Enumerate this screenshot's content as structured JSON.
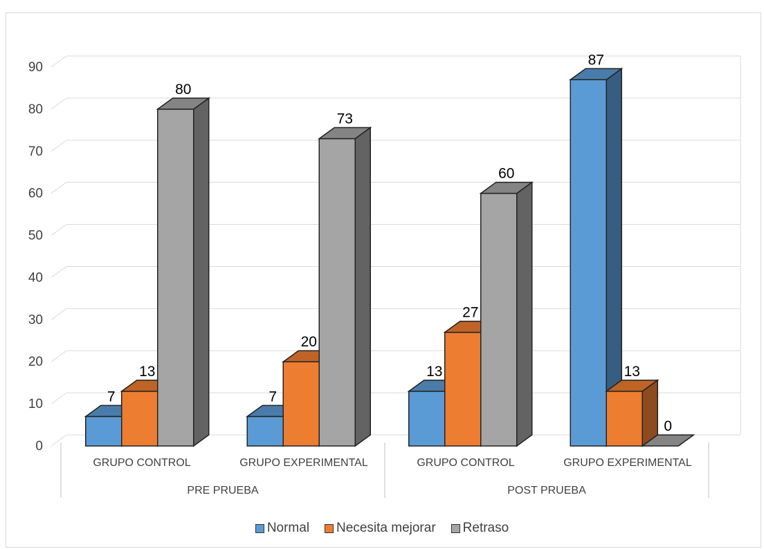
{
  "chart_data": {
    "type": "bar",
    "variant": "3d-clustered-column",
    "title": "",
    "xlabel": "",
    "ylabel": "",
    "ylim": [
      0,
      90
    ],
    "yticks": [
      0,
      10,
      20,
      30,
      40,
      50,
      60,
      70,
      80,
      90
    ],
    "grid": true,
    "legend_position": "bottom",
    "groups": [
      {
        "label": "PRE PRUEBA",
        "categories": [
          "GRUPO CONTROL",
          "GRUPO EXPERIMENTAL"
        ]
      },
      {
        "label": "POST PRUEBA",
        "categories": [
          "GRUPO CONTROL",
          "GRUPO EXPERIMENTAL"
        ]
      }
    ],
    "categories": [
      "GRUPO CONTROL",
      "GRUPO EXPERIMENTAL",
      "GRUPO CONTROL",
      "GRUPO EXPERIMENTAL"
    ],
    "series": [
      {
        "name": "Normal",
        "color": "#5b9bd5",
        "values": [
          7,
          7,
          13,
          87
        ]
      },
      {
        "name": "Necesita mejorar",
        "color": "#ed7d31",
        "values": [
          13,
          20,
          27,
          13
        ]
      },
      {
        "name": "Retraso",
        "color": "#a5a5a5",
        "values": [
          80,
          73,
          60,
          0
        ]
      }
    ]
  }
}
